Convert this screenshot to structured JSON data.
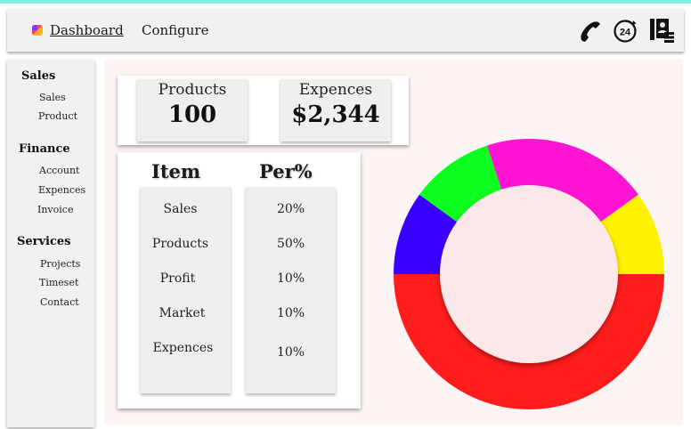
{
  "header": {
    "brand_icon": "app-logo-icon",
    "nav": [
      {
        "label": "Dashboard"
      },
      {
        "label": "Configure"
      }
    ],
    "icons": [
      "phone-icon",
      "clock-24-icon",
      "contacts-icon"
    ],
    "clock_label": "24"
  },
  "sidebar": {
    "groups": [
      {
        "title": "Sales",
        "items": [
          "Sales",
          "Product"
        ]
      },
      {
        "title": "Finance",
        "items": [
          "Account",
          "Expences",
          "Invoice"
        ]
      },
      {
        "title": "Services",
        "items": [
          "Projects",
          "Timeset",
          "Contact"
        ]
      }
    ]
  },
  "stats": {
    "products": {
      "label": "Products",
      "value": "100"
    },
    "expences": {
      "label": "Expences",
      "value": "$2,344"
    }
  },
  "table": {
    "headers": [
      "Item",
      "Per%"
    ],
    "rows": [
      {
        "item": "Sales",
        "per": "20%"
      },
      {
        "item": "Products",
        "per": "50%"
      },
      {
        "item": "Profit",
        "per": "10%"
      },
      {
        "item": "Market",
        "per": "10%"
      },
      {
        "item": "Expences",
        "per": "10%"
      }
    ]
  },
  "chart_data": {
    "type": "pie",
    "donut": true,
    "values": [
      50,
      10,
      10,
      20,
      10
    ],
    "colors": [
      "#ff1c1c",
      "#3a00ff",
      "#0cff1f",
      "#ff14d4",
      "#fff200"
    ],
    "center_color": "#fce8e8",
    "title": "",
    "legend": "none"
  }
}
